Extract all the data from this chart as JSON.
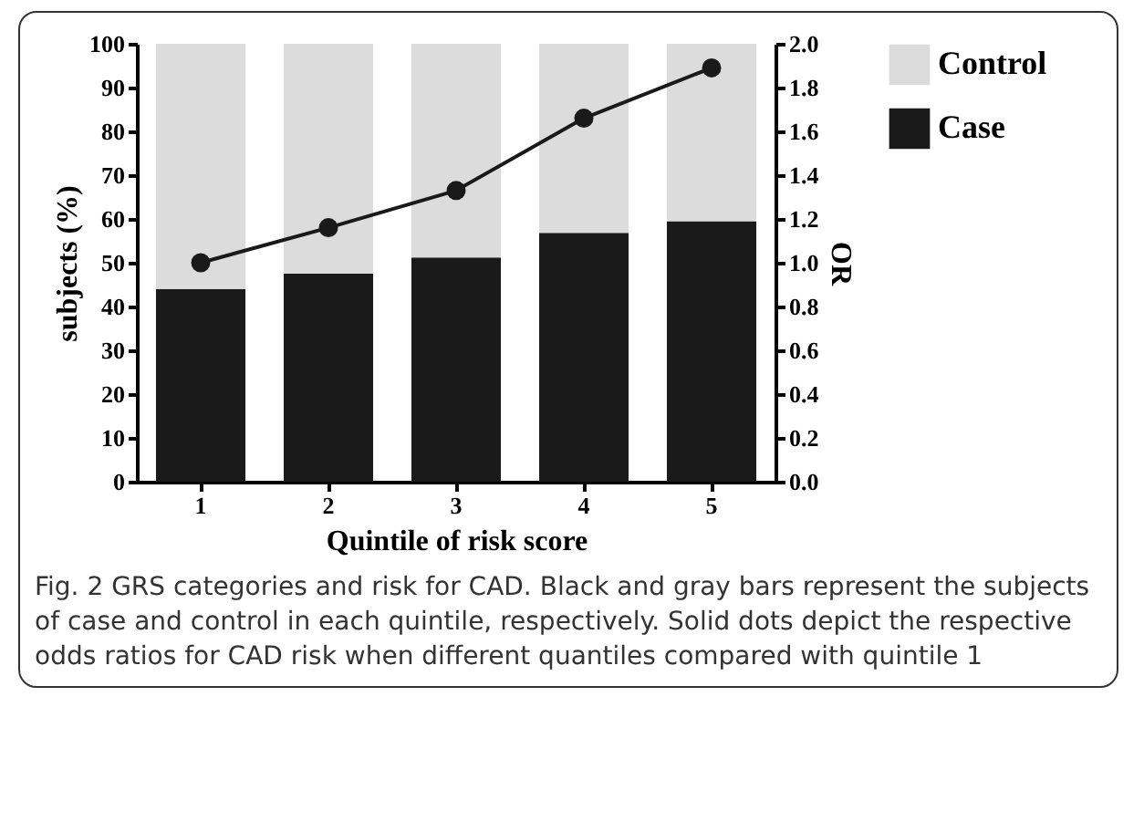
{
  "chart_data": {
    "type": "bar",
    "stacked": true,
    "xlabel": "Quintile of risk score",
    "ylabel": "subjects (%)",
    "y2label": "OR",
    "categories": [
      "1",
      "2",
      "3",
      "4",
      "5"
    ],
    "series": [
      {
        "name": "Case",
        "color": "#1a1a1a",
        "values": [
          44,
          47.5,
          51.2,
          56.8,
          59.5
        ]
      },
      {
        "name": "Control",
        "color": "#dcdcdc",
        "values": [
          56,
          52.5,
          48.8,
          43.2,
          40.5
        ]
      },
      {
        "type": "line",
        "axis": "y2",
        "color": "#1a1a1a",
        "values": [
          1.0,
          1.16,
          1.33,
          1.66,
          1.89
        ]
      }
    ],
    "ylim": [
      0,
      100
    ],
    "yticks": [
      0,
      10,
      20,
      30,
      40,
      50,
      60,
      70,
      80,
      90,
      100
    ],
    "y2lim": [
      0,
      2
    ],
    "y2ticks": [
      {
        "value": 0,
        "label": "0.0"
      },
      {
        "value": 0.2,
        "label": "0.2"
      },
      {
        "value": 0.4,
        "label": "0.4"
      },
      {
        "value": 0.6,
        "label": "0.6"
      },
      {
        "value": 0.8,
        "label": "0.8"
      },
      {
        "value": 1,
        "label": "1.0"
      },
      {
        "value": 1.2,
        "label": "1.2"
      },
      {
        "value": 1.4,
        "label": "1.4"
      },
      {
        "value": 1.6,
        "label": "1.6"
      },
      {
        "value": 1.8,
        "label": "1.8"
      },
      {
        "value": 2,
        "label": "2.0"
      }
    ],
    "grid": false,
    "legend": "top right",
    "marker": "circle",
    "line_style": "solid",
    "annotations": [
      "Fig. 2 GRS categories and risk for CAD. Black and gray bars represent the subjects of case and control in each quintile, respectively. Solid dots depict the respective odds ratios for CAD risk when different quantiles compared with quintile 1"
    ]
  }
}
